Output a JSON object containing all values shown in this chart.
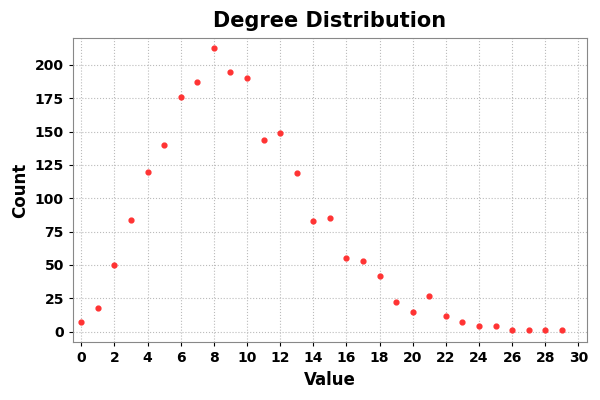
{
  "x": [
    0,
    1,
    2,
    3,
    4,
    5,
    6,
    7,
    8,
    9,
    10,
    11,
    12,
    13,
    14,
    15,
    16,
    17,
    18,
    19,
    20,
    21,
    22,
    23,
    24,
    25,
    26,
    27,
    28,
    29
  ],
  "y": [
    7,
    18,
    50,
    84,
    120,
    140,
    176,
    187,
    213,
    195,
    190,
    144,
    149,
    119,
    83,
    85,
    55,
    53,
    42,
    22,
    15,
    27,
    12,
    7,
    4,
    4,
    1,
    1,
    1,
    1
  ],
  "title": "Degree Distribution",
  "xlabel": "Value",
  "ylabel": "Count",
  "xlim": [
    -0.5,
    30.5
  ],
  "ylim": [
    -8,
    220
  ],
  "marker_color": "#ff3333",
  "marker_size": 12,
  "background_color": "#ffffff",
  "grid_color": "#bbbbbb",
  "title_fontsize": 15,
  "label_fontsize": 12,
  "tick_fontsize": 10,
  "xticks": [
    0,
    2,
    4,
    6,
    8,
    10,
    12,
    14,
    16,
    18,
    20,
    22,
    24,
    26,
    28,
    30
  ],
  "yticks": [
    0,
    25,
    50,
    75,
    100,
    125,
    150,
    175,
    200
  ]
}
